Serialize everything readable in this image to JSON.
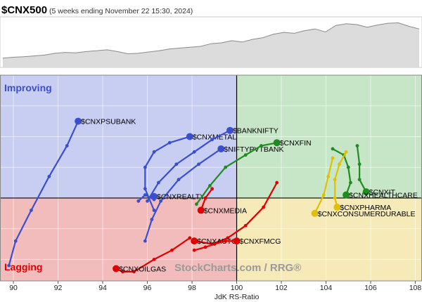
{
  "header": {
    "symbol": "$CNX500",
    "subtitle": "(5 weeks ending November 22 15:30, 2024)"
  },
  "quadrant_labels": {
    "improving": "Improving",
    "lagging": "Lagging"
  },
  "watermark": "StockCharts.com / RRG®",
  "colors": {
    "improving_bg": "#c8cdf2",
    "leading_bg": "#c7e5c7",
    "lagging_bg": "#f3bcbc",
    "weakening_bg": "#f6eab8",
    "improving": "#3a4fcf",
    "leading": "#1e8c1e",
    "lagging": "#e00000",
    "weakening": "#e0c000"
  },
  "chart_data": {
    "type": "scatter",
    "xlabel": "JdK RS-Ratio",
    "ylabel": "",
    "xlim": [
      89.4,
      108.3
    ],
    "ylim": [
      97.3,
      104.0
    ],
    "center": [
      100,
      100
    ],
    "xticks": [
      90,
      92,
      94,
      96,
      98,
      100,
      102,
      104,
      106,
      108
    ],
    "grid": true,
    "series": [
      {
        "name": "$CNXPSUBANK",
        "color": "#3a4fcf",
        "label_side": "right",
        "points": [
          [
            89.8,
            97.8
          ],
          [
            90.1,
            98.6
          ],
          [
            90.8,
            99.6
          ],
          [
            91.6,
            100.7
          ],
          [
            92.4,
            101.7
          ],
          [
            92.9,
            102.5
          ]
        ]
      },
      {
        "name": "$CNXMETAL",
        "color": "#3a4fcf",
        "label_side": "right",
        "points": [
          [
            96.3,
            99.6
          ],
          [
            95.9,
            100.3
          ],
          [
            95.9,
            101.0
          ],
          [
            96.3,
            101.5
          ],
          [
            97.0,
            101.8
          ],
          [
            97.9,
            102.0
          ]
        ]
      },
      {
        "name": "$BANKNIFTY",
        "color": "#3a4fcf",
        "label_side": "right",
        "points": [
          [
            96.0,
            99.9
          ],
          [
            96.5,
            100.5
          ],
          [
            97.3,
            101.1
          ],
          [
            98.1,
            101.5
          ],
          [
            98.9,
            101.9
          ],
          [
            99.7,
            102.2
          ]
        ]
      },
      {
        "name": "$NIFTYPVTBANK",
        "color": "#3a4fcf",
        "label_side": "right",
        "points": [
          [
            95.9,
            98.6
          ],
          [
            96.2,
            99.3
          ],
          [
            96.6,
            99.9
          ],
          [
            97.4,
            100.6
          ],
          [
            98.3,
            101.1
          ],
          [
            99.3,
            101.6
          ]
        ]
      },
      {
        "name": "$CNXREALTY",
        "color": "#3a4fcf",
        "label_side": "right",
        "points": [
          [
            95.6,
            99.9
          ],
          [
            95.9,
            100.1
          ],
          [
            96.3,
            99.95
          ],
          [
            96.3,
            100.05
          ]
        ]
      },
      {
        "name": "$CNXFIN",
        "color": "#1e8c1e",
        "label_side": "right",
        "points": [
          [
            98.2,
            99.8
          ],
          [
            98.8,
            100.4
          ],
          [
            99.5,
            101.0
          ],
          [
            100.4,
            101.4
          ],
          [
            101.1,
            101.7
          ],
          [
            101.8,
            101.8
          ]
        ]
      },
      {
        "name": "$CNXMEDIA",
        "color": "#e00000",
        "label_side": "right",
        "points": [
          [
            98.9,
            100.3
          ],
          [
            98.6,
            100.0
          ],
          [
            98.4,
            99.6
          ]
        ]
      },
      {
        "name": "$CNXAUTO",
        "color": "#e00000",
        "label_side": "right",
        "points": [
          [
            101.8,
            100.5
          ],
          [
            101.2,
            99.7
          ],
          [
            100.4,
            99.1
          ],
          [
            99.6,
            98.7
          ],
          [
            98.9,
            98.5
          ],
          [
            98.1,
            98.6
          ]
        ]
      },
      {
        "name": "$CNXFMCG",
        "color": "#e00000",
        "label_side": "right",
        "points": [
          [
            98.1,
            98.3
          ],
          [
            98.6,
            98.4
          ],
          [
            99.0,
            98.5
          ],
          [
            99.5,
            98.6
          ],
          [
            100.0,
            98.6
          ]
        ]
      },
      {
        "name": "$CNXOILGAS",
        "color": "#e00000",
        "label_side": "right",
        "points": [
          [
            97.9,
            98.7
          ],
          [
            97.1,
            98.3
          ],
          [
            96.3,
            98.0
          ],
          [
            95.4,
            97.6
          ],
          [
            94.9,
            97.6
          ],
          [
            94.6,
            97.7
          ]
        ]
      },
      {
        "name": "$CNXIT",
        "color": "#1e8c1e",
        "label_side": "right",
        "points": [
          [
            105.4,
            101.7
          ],
          [
            105.5,
            101.1
          ],
          [
            105.5,
            100.6
          ],
          [
            105.8,
            100.2
          ]
        ]
      },
      {
        "name": "$CNXHEALTHCARE",
        "color": "#1e8c1e",
        "label_side": "right",
        "points": [
          [
            104.3,
            101.6
          ],
          [
            104.8,
            101.4
          ],
          [
            105.0,
            101.0
          ],
          [
            105.1,
            100.5
          ],
          [
            104.9,
            100.1
          ]
        ]
      },
      {
        "name": "$CNXPHARMA",
        "color": "#e0c000",
        "label_side": "right",
        "points": [
          [
            104.9,
            101.5
          ],
          [
            104.6,
            101.1
          ],
          [
            104.4,
            100.6
          ],
          [
            104.4,
            100.0
          ],
          [
            104.5,
            99.7
          ]
        ]
      },
      {
        "name": "$CNXCONSUMERDURABLE",
        "color": "#e0c000",
        "label_side": "right",
        "points": [
          [
            104.3,
            101.3
          ],
          [
            104.1,
            100.7
          ],
          [
            103.9,
            100.1
          ],
          [
            103.5,
            99.5
          ]
        ]
      }
    ],
    "benchmark_line": [
      0.85,
      0.83,
      0.82,
      0.8,
      0.78,
      0.74,
      0.72,
      0.73,
      0.7,
      0.68,
      0.66,
      0.7,
      0.75,
      0.74,
      0.71,
      0.68,
      0.64,
      0.62,
      0.6,
      0.58,
      0.52,
      0.5,
      0.45,
      0.48,
      0.42,
      0.38,
      0.3,
      0.26,
      0.28,
      0.22,
      0.18,
      0.25,
      0.1,
      0.06,
      0.08,
      0.14,
      0.09,
      0.05,
      0.04,
      0.12,
      0.18
    ]
  }
}
